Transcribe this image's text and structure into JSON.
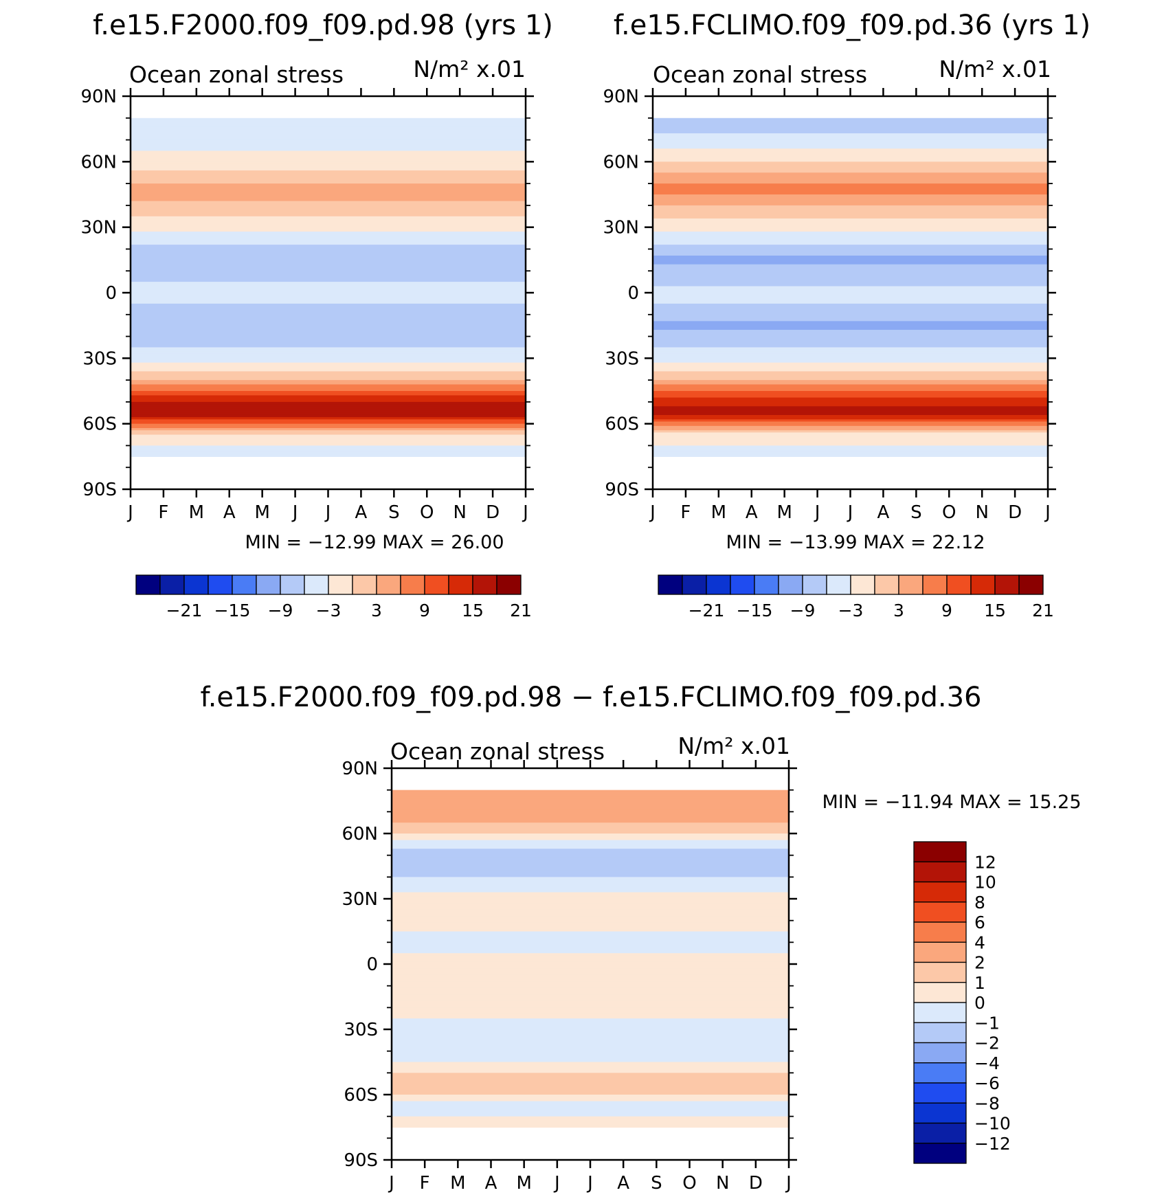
{
  "chart_data": [
    {
      "type": "heatmap",
      "title": "f.e15.F2000.f09_f09.pd.98 (yrs 1)",
      "subtitle_left": "Ocean zonal stress",
      "subtitle_right": "N/m² x.01",
      "xlabel": "",
      "ylabel": "",
      "x_ticks": [
        "J",
        "F",
        "M",
        "A",
        "M",
        "J",
        "J",
        "A",
        "S",
        "O",
        "N",
        "D",
        "J"
      ],
      "y_ticks": [
        "90N",
        "60N",
        "30N",
        "0",
        "30S",
        "60S",
        "90S"
      ],
      "ylim": [
        -90,
        90
      ],
      "min_max_text": "MIN = −12.99 MAX =   26.00",
      "min": -12.99,
      "max": 26.0,
      "colorbar": {
        "orientation": "horizontal",
        "levels": [
          -24,
          -21,
          -18,
          -15,
          -12,
          -9,
          -6,
          -3,
          0,
          3,
          6,
          9,
          12,
          15,
          18,
          21,
          24
        ],
        "colors": [
          "#00007f",
          "#0a1fa6",
          "#0b35d2",
          "#1f4cf0",
          "#4a7cf5",
          "#8aa9f3",
          "#b4caf7",
          "#dbe9fb",
          "#fde7d5",
          "#fcc8a8",
          "#faa77d",
          "#f77d4b",
          "#f04f21",
          "#d62a07",
          "#b31407",
          "#8b0000"
        ],
        "tick_labels": [
          "−21",
          "−15",
          "−9",
          "−3",
          "3",
          "9",
          "15",
          "21"
        ]
      },
      "zonal_mean_profile": {
        "lat": [
          80,
          70,
          60,
          50,
          45,
          40,
          30,
          20,
          15,
          10,
          0,
          -10,
          -15,
          -20,
          -30,
          -35,
          -40,
          -45,
          -50,
          -55,
          -60,
          -65,
          -70,
          -75
        ],
        "value": [
          -2,
          -1,
          1,
          6,
          7,
          5,
          1,
          -4,
          -6,
          -4,
          -2,
          -4,
          -6,
          -5,
          -1,
          2,
          6,
          12,
          18,
          21,
          12,
          2,
          0,
          -1
        ]
      }
    },
    {
      "type": "heatmap",
      "title": "f.e15.FCLIMO.f09_f09.pd.36 (yrs 1)",
      "subtitle_left": "Ocean zonal stress",
      "subtitle_right": "N/m² x.01",
      "xlabel": "",
      "ylabel": "",
      "x_ticks": [
        "J",
        "F",
        "M",
        "A",
        "M",
        "J",
        "J",
        "A",
        "S",
        "O",
        "N",
        "D",
        "J"
      ],
      "y_ticks": [
        "90N",
        "60N",
        "30N",
        "0",
        "30S",
        "60S",
        "90S"
      ],
      "ylim": [
        -90,
        90
      ],
      "min_max_text": "MIN = −13.99 MAX =   22.12",
      "min": -13.99,
      "max": 22.12,
      "colorbar": {
        "orientation": "horizontal",
        "levels": [
          -24,
          -21,
          -18,
          -15,
          -12,
          -9,
          -6,
          -3,
          0,
          3,
          6,
          9,
          12,
          15,
          18,
          21,
          24
        ],
        "colors": [
          "#00007f",
          "#0a1fa6",
          "#0b35d2",
          "#1f4cf0",
          "#4a7cf5",
          "#8aa9f3",
          "#b4caf7",
          "#dbe9fb",
          "#fde7d5",
          "#fcc8a8",
          "#faa77d",
          "#f77d4b",
          "#f04f21",
          "#d62a07",
          "#b31407",
          "#8b0000"
        ],
        "tick_labels": [
          "−21",
          "−15",
          "−9",
          "−3",
          "3",
          "9",
          "15",
          "21"
        ]
      },
      "zonal_mean_profile": {
        "lat": [
          80,
          70,
          60,
          50,
          45,
          40,
          30,
          20,
          15,
          10,
          0,
          -10,
          -15,
          -20,
          -30,
          -35,
          -40,
          -45,
          -50,
          -55,
          -60,
          -65,
          -70,
          -75
        ],
        "value": [
          -5,
          -2,
          3,
          9,
          9,
          6,
          1,
          -4,
          -7,
          -5,
          -2,
          -4,
          -7,
          -5,
          -1,
          2,
          6,
          12,
          17,
          19,
          11,
          2,
          0,
          -1
        ]
      }
    },
    {
      "type": "heatmap",
      "title": "f.e15.F2000.f09_f09.pd.98 − f.e15.FCLIMO.f09_f09.pd.36",
      "subtitle_left": "Ocean zonal stress",
      "subtitle_right": "N/m² x.01",
      "xlabel": "",
      "ylabel": "",
      "x_ticks": [
        "J",
        "F",
        "M",
        "A",
        "M",
        "J",
        "J",
        "A",
        "S",
        "O",
        "N",
        "D",
        "J"
      ],
      "y_ticks": [
        "90N",
        "60N",
        "30N",
        "0",
        "30S",
        "60S",
        "90S"
      ],
      "ylim": [
        -90,
        90
      ],
      "min_max_text": "MIN = −11.94 MAX =   15.25",
      "min": -11.94,
      "max": 15.25,
      "colorbar": {
        "orientation": "vertical",
        "levels": [
          -14,
          -12,
          -10,
          -8,
          -6,
          -4,
          -2,
          -1,
          0,
          1,
          2,
          4,
          6,
          8,
          10,
          12,
          14
        ],
        "colors": [
          "#00007f",
          "#0a1fa6",
          "#0b35d2",
          "#1f4cf0",
          "#4a7cf5",
          "#8aa9f3",
          "#b4caf7",
          "#dbe9fb",
          "#fde7d5",
          "#fcc8a8",
          "#faa77d",
          "#f77d4b",
          "#f04f21",
          "#d62a07",
          "#b31407",
          "#8b0000"
        ],
        "tick_labels": [
          "12",
          "10",
          "8",
          "6",
          "4",
          "2",
          "1",
          "0",
          "−1",
          "−2",
          "−4",
          "−6",
          "−8",
          "−10",
          "−12"
        ]
      },
      "zonal_mean_profile": {
        "lat": [
          80,
          70,
          60,
          50,
          40,
          30,
          20,
          10,
          0,
          -10,
          -20,
          -30,
          -40,
          -50,
          -55,
          -60,
          -65,
          -70,
          -75
        ],
        "value": [
          2,
          3,
          1,
          -2,
          -1,
          0.5,
          0.5,
          -0.5,
          0.5,
          0.5,
          1,
          -1,
          -1,
          1,
          2,
          1,
          -1,
          0,
          0
        ]
      }
    }
  ]
}
